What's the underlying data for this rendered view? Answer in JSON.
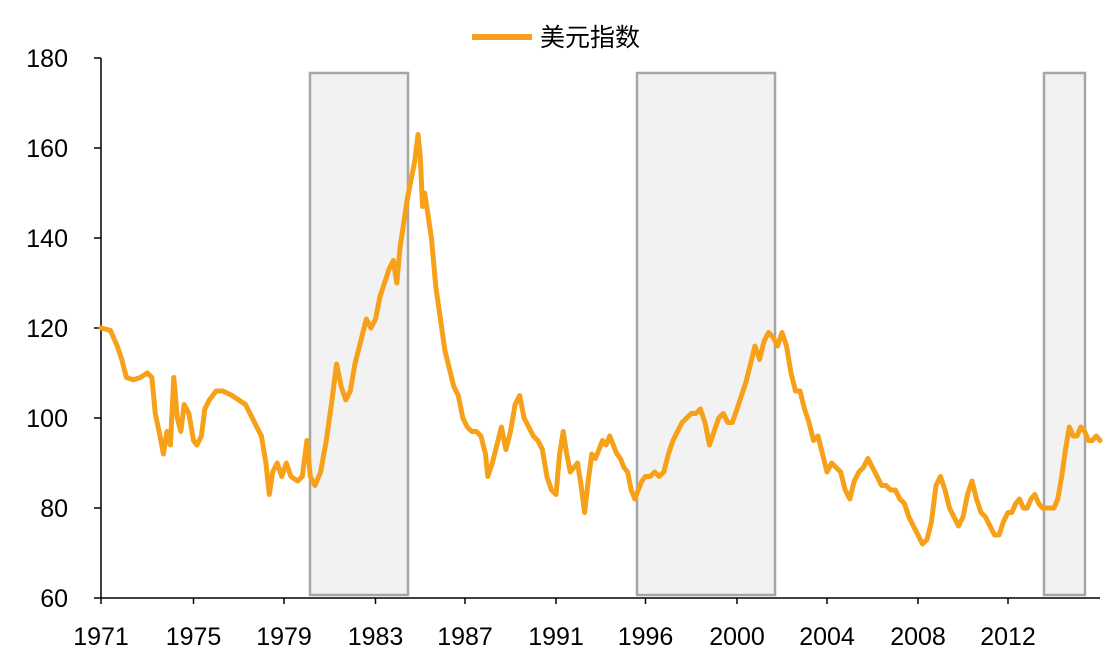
{
  "chart_data": {
    "type": "line",
    "title": "",
    "xlabel": "",
    "ylabel": "",
    "ylim": [
      60,
      180
    ],
    "yticks": [
      60,
      80,
      100,
      120,
      140,
      160,
      180
    ],
    "x_tick_labels": [
      "1971",
      "1975",
      "1979",
      "1983",
      "1987",
      "1991",
      "1996",
      "2000",
      "2004",
      "2008",
      "2012"
    ],
    "grid": false,
    "legend": {
      "placement": "top-center",
      "entries": [
        "美元指数"
      ]
    },
    "colors": {
      "line": "#F7A11A",
      "shade_fill": "#F2F2F2",
      "shade_border": "#A6A6A6",
      "axis": "#000000"
    },
    "shaded_periods": [
      {
        "start": "1980",
        "end": "1984"
      },
      {
        "start": "1995",
        "end": "2001"
      },
      {
        "start": "2013",
        "end": "2015"
      }
    ],
    "series": [
      {
        "name": "美元指数",
        "points": [
          [
            1971.0,
            120
          ],
          [
            1971.4,
            119.5
          ],
          [
            1971.7,
            116
          ],
          [
            1971.9,
            113
          ],
          [
            1972.1,
            109
          ],
          [
            1972.4,
            108.5
          ],
          [
            1972.7,
            109
          ],
          [
            1973.0,
            110
          ],
          [
            1973.2,
            109
          ],
          [
            1973.35,
            101
          ],
          [
            1973.55,
            96
          ],
          [
            1973.7,
            92
          ],
          [
            1973.85,
            97
          ],
          [
            1974.0,
            94
          ],
          [
            1974.15,
            109
          ],
          [
            1974.3,
            100
          ],
          [
            1974.45,
            97
          ],
          [
            1974.6,
            103
          ],
          [
            1974.8,
            101
          ],
          [
            1975.0,
            95
          ],
          [
            1975.15,
            94
          ],
          [
            1975.35,
            96
          ],
          [
            1975.5,
            102
          ],
          [
            1975.7,
            104
          ],
          [
            1976.0,
            106
          ],
          [
            1976.3,
            106
          ],
          [
            1976.7,
            105
          ],
          [
            1977.0,
            104
          ],
          [
            1977.3,
            103
          ],
          [
            1977.6,
            100
          ],
          [
            1977.8,
            98
          ],
          [
            1978.0,
            96
          ],
          [
            1978.2,
            90
          ],
          [
            1978.35,
            83
          ],
          [
            1978.5,
            88
          ],
          [
            1978.7,
            90
          ],
          [
            1978.9,
            87
          ],
          [
            1979.1,
            90
          ],
          [
            1979.3,
            87
          ],
          [
            1979.6,
            86
          ],
          [
            1979.8,
            87
          ],
          [
            1980.0,
            95
          ],
          [
            1980.15,
            87
          ],
          [
            1980.35,
            85
          ],
          [
            1980.6,
            88
          ],
          [
            1980.85,
            95
          ],
          [
            1981.1,
            104
          ],
          [
            1981.3,
            112
          ],
          [
            1981.5,
            107
          ],
          [
            1981.7,
            104
          ],
          [
            1981.9,
            106
          ],
          [
            1982.1,
            112
          ],
          [
            1982.4,
            118
          ],
          [
            1982.6,
            122
          ],
          [
            1982.8,
            120
          ],
          [
            1983.0,
            122
          ],
          [
            1983.2,
            127
          ],
          [
            1983.4,
            130
          ],
          [
            1983.6,
            133
          ],
          [
            1983.8,
            135
          ],
          [
            1983.95,
            130
          ],
          [
            1984.1,
            138
          ],
          [
            1984.25,
            143
          ],
          [
            1984.4,
            148
          ],
          [
            1984.55,
            152
          ],
          [
            1984.75,
            157
          ],
          [
            1984.9,
            163
          ],
          [
            1985.0,
            158
          ],
          [
            1985.1,
            147
          ],
          [
            1985.2,
            150
          ],
          [
            1985.35,
            145
          ],
          [
            1985.5,
            140
          ],
          [
            1985.7,
            129
          ],
          [
            1985.9,
            122
          ],
          [
            1986.1,
            115
          ],
          [
            1986.3,
            111
          ],
          [
            1986.5,
            107
          ],
          [
            1986.7,
            105
          ],
          [
            1986.9,
            100
          ],
          [
            1987.1,
            98
          ],
          [
            1987.3,
            97
          ],
          [
            1987.5,
            97
          ],
          [
            1987.7,
            96
          ],
          [
            1987.9,
            92
          ],
          [
            1988.0,
            87
          ],
          [
            1988.2,
            90
          ],
          [
            1988.4,
            94
          ],
          [
            1988.6,
            98
          ],
          [
            1988.8,
            93
          ],
          [
            1989.0,
            97
          ],
          [
            1989.2,
            103
          ],
          [
            1989.4,
            105
          ],
          [
            1989.6,
            100
          ],
          [
            1989.8,
            98
          ],
          [
            1990.0,
            96
          ],
          [
            1990.2,
            95
          ],
          [
            1990.4,
            93
          ],
          [
            1990.6,
            87
          ],
          [
            1990.8,
            84
          ],
          [
            1991.0,
            83
          ],
          [
            1991.2,
            92
          ],
          [
            1991.4,
            97
          ],
          [
            1991.6,
            92
          ],
          [
            1991.8,
            88
          ],
          [
            1992.0,
            89
          ],
          [
            1992.2,
            90
          ],
          [
            1992.4,
            85
          ],
          [
            1992.6,
            79
          ],
          [
            1992.8,
            86
          ],
          [
            1993.0,
            92
          ],
          [
            1993.2,
            91
          ],
          [
            1993.4,
            93
          ],
          [
            1993.6,
            95
          ],
          [
            1993.8,
            94
          ],
          [
            1994.0,
            96
          ],
          [
            1994.2,
            94
          ],
          [
            1994.4,
            92
          ],
          [
            1994.6,
            91
          ],
          [
            1994.8,
            89
          ],
          [
            1995.0,
            88
          ],
          [
            1995.2,
            84
          ],
          [
            1995.4,
            82
          ],
          [
            1995.6,
            84
          ],
          [
            1995.8,
            86
          ],
          [
            1996.0,
            87
          ],
          [
            1996.2,
            87
          ],
          [
            1996.4,
            88
          ],
          [
            1996.6,
            87
          ],
          [
            1996.8,
            88
          ],
          [
            1997.0,
            92
          ],
          [
            1997.2,
            95
          ],
          [
            1997.4,
            97
          ],
          [
            1997.6,
            99
          ],
          [
            1997.8,
            100
          ],
          [
            1998.0,
            101
          ],
          [
            1998.2,
            101
          ],
          [
            1998.4,
            102
          ],
          [
            1998.6,
            99
          ],
          [
            1998.8,
            94
          ],
          [
            1999.0,
            97
          ],
          [
            1999.2,
            100
          ],
          [
            1999.4,
            101
          ],
          [
            1999.6,
            99
          ],
          [
            1999.8,
            99
          ],
          [
            2000.0,
            102
          ],
          [
            2000.2,
            105
          ],
          [
            2000.4,
            108
          ],
          [
            2000.6,
            112
          ],
          [
            2000.8,
            116
          ],
          [
            2001.0,
            113
          ],
          [
            2001.2,
            117
          ],
          [
            2001.4,
            119
          ],
          [
            2001.6,
            118
          ],
          [
            2001.8,
            116
          ],
          [
            2002.0,
            119
          ],
          [
            2002.2,
            116
          ],
          [
            2002.4,
            110
          ],
          [
            2002.6,
            106
          ],
          [
            2002.8,
            106
          ],
          [
            2003.0,
            102
          ],
          [
            2003.2,
            99
          ],
          [
            2003.4,
            95
          ],
          [
            2003.6,
            96
          ],
          [
            2003.8,
            92
          ],
          [
            2004.0,
            88
          ],
          [
            2004.2,
            90
          ],
          [
            2004.4,
            89
          ],
          [
            2004.6,
            88
          ],
          [
            2004.8,
            84
          ],
          [
            2005.0,
            82
          ],
          [
            2005.2,
            86
          ],
          [
            2005.4,
            88
          ],
          [
            2005.6,
            89
          ],
          [
            2005.8,
            91
          ],
          [
            2006.0,
            89
          ],
          [
            2006.2,
            87
          ],
          [
            2006.4,
            85
          ],
          [
            2006.6,
            85
          ],
          [
            2006.8,
            84
          ],
          [
            2007.0,
            84
          ],
          [
            2007.2,
            82
          ],
          [
            2007.4,
            81
          ],
          [
            2007.6,
            78
          ],
          [
            2007.8,
            76
          ],
          [
            2008.0,
            74
          ],
          [
            2008.2,
            72
          ],
          [
            2008.4,
            73
          ],
          [
            2008.6,
            77
          ],
          [
            2008.8,
            85
          ],
          [
            2009.0,
            87
          ],
          [
            2009.2,
            84
          ],
          [
            2009.4,
            80
          ],
          [
            2009.6,
            78
          ],
          [
            2009.8,
            76
          ],
          [
            2010.0,
            78
          ],
          [
            2010.2,
            83
          ],
          [
            2010.4,
            86
          ],
          [
            2010.6,
            82
          ],
          [
            2010.8,
            79
          ],
          [
            2011.0,
            78
          ],
          [
            2011.2,
            76
          ],
          [
            2011.4,
            74
          ],
          [
            2011.6,
            74
          ],
          [
            2011.8,
            77
          ],
          [
            2012.0,
            79
          ],
          [
            2012.2,
            79
          ],
          [
            2012.4,
            81
          ],
          [
            2012.6,
            82
          ],
          [
            2012.8,
            80
          ],
          [
            2013.0,
            80
          ],
          [
            2013.2,
            82
          ],
          [
            2013.4,
            83
          ],
          [
            2013.6,
            81
          ],
          [
            2013.8,
            80
          ],
          [
            2014.0,
            80
          ],
          [
            2014.2,
            80
          ],
          [
            2014.4,
            80
          ],
          [
            2014.6,
            82
          ],
          [
            2014.8,
            87
          ],
          [
            2015.0,
            93
          ],
          [
            2015.2,
            98
          ],
          [
            2015.4,
            96
          ],
          [
            2015.6,
            96
          ],
          [
            2015.8,
            98
          ],
          [
            2016.0,
            97
          ],
          [
            2016.2,
            95
          ],
          [
            2016.4,
            95
          ],
          [
            2016.6,
            96
          ],
          [
            2016.8,
            95
          ]
        ]
      }
    ]
  }
}
